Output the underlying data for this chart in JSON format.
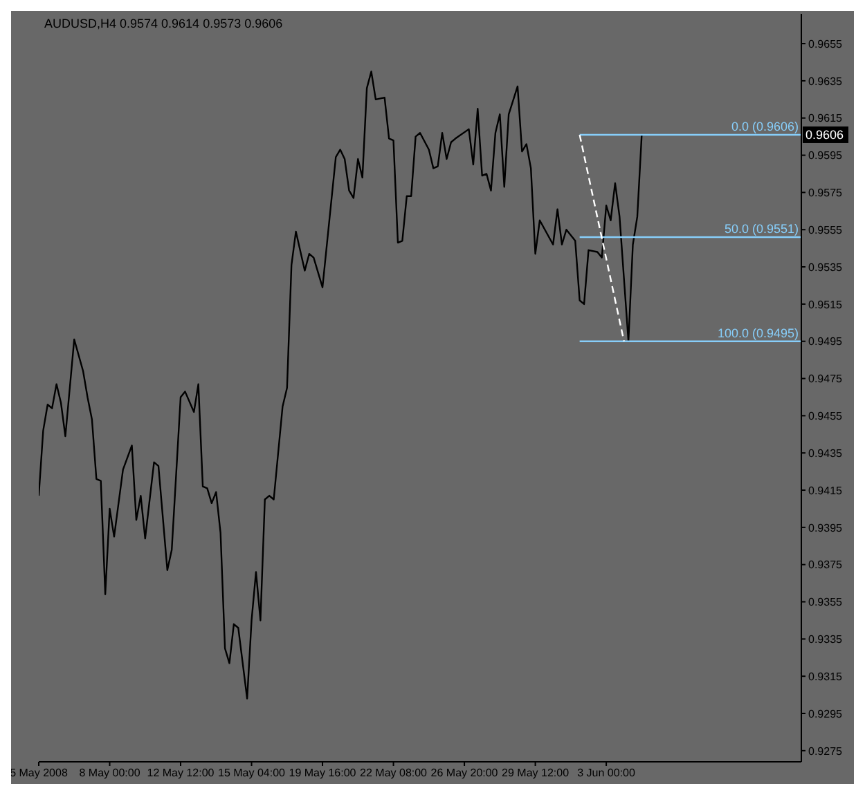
{
  "chart_data": {
    "type": "line",
    "title": "AUDUSD,H4  0.9574 0.9614 0.9573 0.9606",
    "categories": [
      "5 May 2008",
      null,
      null,
      null,
      null,
      null,
      null,
      null,
      null,
      null,
      null,
      null,
      null,
      null,
      null,
      null,
      "8 May 00:00",
      null,
      null,
      null,
      null,
      null,
      null,
      null,
      null,
      null,
      null,
      null,
      null,
      null,
      null,
      null,
      "12 May 12:00",
      null,
      null,
      null,
      null,
      null,
      null,
      null,
      null,
      null,
      null,
      null,
      null,
      null,
      null,
      null,
      "15 May 04:00",
      null,
      null,
      null,
      null,
      null,
      null,
      null,
      null,
      null,
      null,
      null,
      null,
      null,
      null,
      null,
      "19 May 16:00",
      null,
      null,
      null,
      null,
      null,
      null,
      null,
      null,
      null,
      null,
      null,
      null,
      null,
      null,
      null,
      "22 May 08:00",
      null,
      null,
      null,
      null,
      null,
      null,
      null,
      null,
      null,
      null,
      null,
      null,
      null,
      null,
      null,
      "26 May 20:00",
      null,
      null,
      null,
      null,
      null,
      null,
      null,
      null,
      null,
      null,
      null,
      null,
      null,
      null,
      null,
      "29 May 12:00",
      null,
      null,
      null,
      null,
      null,
      null,
      null,
      null,
      null,
      null,
      null,
      null,
      null,
      null,
      null,
      "3 Jun 00:00",
      null,
      null,
      null,
      null,
      null,
      null,
      null,
      null,
      null,
      null,
      null,
      null,
      null,
      null,
      null,
      null,
      null,
      null,
      null,
      null,
      null,
      null,
      null,
      null,
      null,
      null,
      null,
      null,
      null,
      null,
      null,
      null,
      null,
      null,
      null,
      null,
      null,
      null,
      null,
      null,
      null,
      null,
      null,
      null
    ],
    "ylim": [
      0.9269,
      0.9671
    ],
    "yticks": [
      0.9275,
      0.9295,
      0.9315,
      0.9335,
      0.9355,
      0.9375,
      0.9395,
      0.9415,
      0.9435,
      0.9455,
      0.9475,
      0.9495,
      0.9515,
      0.9535,
      0.9555,
      0.9575,
      0.9595,
      0.9615,
      0.9635,
      0.9655
    ],
    "grid": false,
    "legend": false,
    "series": [
      {
        "color": "#000000",
        "values": [
          0.9412,
          0.9447,
          0.9461,
          0.9459,
          0.9472,
          0.9462,
          0.9444,
          0.947,
          0.9496,
          null,
          0.9479,
          0.9465,
          0.9453,
          0.9421,
          0.942,
          0.9359,
          0.9405,
          0.939,
          null,
          0.9426,
          null,
          0.9439,
          0.9399,
          0.9412,
          0.9389,
          null,
          0.943,
          0.9428,
          null,
          0.9372,
          0.9383,
          null,
          0.9465,
          0.9468,
          null,
          0.9457,
          0.9472,
          0.9417,
          0.9416,
          0.9408,
          0.9414,
          0.9392,
          0.933,
          0.9322,
          0.9343,
          0.9341,
          null,
          0.9303,
          0.9345,
          0.9371,
          0.9345,
          0.941,
          0.9412,
          0.941,
          null,
          0.946,
          0.947,
          0.9536,
          0.9554,
          null,
          0.9533,
          0.9542,
          0.954,
          null,
          0.9524,
          null,
          null,
          0.9594,
          0.9598,
          0.9593,
          0.9576,
          0.9572,
          0.9593,
          0.9583,
          0.9631,
          0.964,
          0.9625,
          null,
          0.9626,
          0.9604,
          0.9603,
          0.9548,
          0.9549,
          0.9573,
          0.9573,
          0.9605,
          0.9607,
          null,
          0.9598,
          0.9588,
          0.9589,
          0.9607,
          0.9593,
          0.9602,
          0.9604,
          null,
          null,
          0.9609,
          0.959,
          0.962,
          0.9584,
          0.9585,
          0.9576,
          0.9607,
          0.9617,
          0.9578,
          0.9617,
          null,
          0.9632,
          0.9597,
          0.9601,
          0.9588,
          0.9542,
          0.956,
          null,
          null,
          0.9547,
          0.9566,
          0.9547,
          0.9555,
          null,
          0.9549,
          0.9517,
          0.9515,
          0.9544,
          null,
          0.9543,
          0.954,
          0.9568,
          0.956,
          0.958,
          0.9562,
          null,
          0.9495,
          0.9547,
          0.9562,
          0.9606,
          null,
          null,
          null,
          null,
          null,
          null,
          null,
          null,
          null,
          null,
          null,
          null,
          null,
          null,
          null,
          null,
          null,
          null,
          null,
          null,
          null,
          null,
          null,
          null,
          null,
          null,
          null,
          null,
          null,
          null,
          null,
          null,
          null,
          null,
          null,
          null
        ]
      },
      {
        "color": "#87cefa",
        "values": [
          null,
          null,
          null,
          null,
          null,
          null,
          null,
          null,
          null,
          null,
          null,
          null,
          null,
          null,
          null,
          null,
          null,
          null,
          null,
          null,
          null,
          null,
          null,
          null,
          null,
          null,
          null,
          null,
          null,
          null,
          null,
          null,
          null,
          null,
          null,
          null,
          null,
          null,
          null,
          null,
          null,
          null,
          null,
          null,
          null,
          null,
          null,
          null,
          null,
          null,
          null,
          null,
          null,
          null,
          null,
          null,
          null,
          null,
          null,
          null,
          null,
          null,
          null,
          null,
          null,
          null,
          null,
          null,
          null,
          null,
          null,
          null,
          null,
          null,
          null,
          null,
          null,
          null,
          null,
          null,
          null,
          null,
          null,
          null,
          null,
          null,
          null,
          null,
          null,
          null,
          null,
          null,
          null,
          null,
          null,
          null,
          null,
          null,
          null,
          null,
          null,
          null,
          null,
          null,
          null,
          null,
          null,
          null,
          null,
          null,
          null,
          null,
          null,
          null,
          null,
          null,
          null,
          null,
          null,
          null,
          null,
          null,
          0.9606,
          0.9606,
          0.9606,
          0.9606,
          0.9606,
          0.9606,
          0.9606,
          0.9606,
          0.9606,
          0.9606,
          0.9606,
          0.9606,
          0.9606,
          0.9606,
          0.9606,
          0.9606,
          0.9606,
          0.9606,
          0.9606,
          0.9606,
          0.9606,
          0.9606,
          0.9606,
          0.9606,
          0.9606,
          0.9606,
          0.9606,
          0.9606,
          0.9606,
          0.9606,
          0.9606,
          0.9606,
          0.9606,
          0.9606,
          0.9606,
          0.9606,
          0.9606,
          0.9606,
          0.9606,
          0.9606,
          0.9606,
          0.9606,
          0.9606,
          0.9606,
          0.9606,
          0.9606,
          0.9606,
          0.9606,
          0.9606,
          0.9606,
          0.9606
        ]
      },
      {
        "color": "#87cefa",
        "values": [
          null,
          null,
          null,
          null,
          null,
          null,
          null,
          null,
          null,
          null,
          null,
          null,
          null,
          null,
          null,
          null,
          null,
          null,
          null,
          null,
          null,
          null,
          null,
          null,
          null,
          null,
          null,
          null,
          null,
          null,
          null,
          null,
          null,
          null,
          null,
          null,
          null,
          null,
          null,
          null,
          null,
          null,
          null,
          null,
          null,
          null,
          null,
          null,
          null,
          null,
          null,
          null,
          null,
          null,
          null,
          null,
          null,
          null,
          null,
          null,
          null,
          null,
          null,
          null,
          null,
          null,
          null,
          null,
          null,
          null,
          null,
          null,
          null,
          null,
          null,
          null,
          null,
          null,
          null,
          null,
          null,
          null,
          null,
          null,
          null,
          null,
          null,
          null,
          null,
          null,
          null,
          null,
          null,
          null,
          null,
          null,
          null,
          null,
          null,
          null,
          null,
          null,
          null,
          null,
          null,
          null,
          null,
          null,
          null,
          null,
          null,
          null,
          null,
          null,
          null,
          null,
          null,
          null,
          null,
          null,
          null,
          null,
          0.9551,
          0.9551,
          0.9551,
          0.9551,
          0.9551,
          0.9551,
          0.9551,
          0.9551,
          0.9551,
          0.9551,
          0.9551,
          0.9551,
          0.9551,
          0.9551,
          0.9551,
          0.9551,
          0.9551,
          0.9551,
          0.9551,
          0.9551,
          0.9551,
          0.9551,
          0.9551,
          0.9551,
          0.9551,
          0.9551,
          0.9551,
          0.9551,
          0.9551,
          0.9551,
          0.9551,
          0.9551,
          0.9551,
          0.9551,
          0.9551,
          0.9551,
          0.9551,
          0.9551,
          0.9551,
          0.9551,
          0.9551,
          0.9551,
          0.9551,
          0.9551,
          0.9551,
          0.9551,
          0.9551,
          0.9551,
          0.9551,
          0.9551,
          0.9551
        ]
      },
      {
        "color": "#87cefa",
        "values": [
          null,
          null,
          null,
          null,
          null,
          null,
          null,
          null,
          null,
          null,
          null,
          null,
          null,
          null,
          null,
          null,
          null,
          null,
          null,
          null,
          null,
          null,
          null,
          null,
          null,
          null,
          null,
          null,
          null,
          null,
          null,
          null,
          null,
          null,
          null,
          null,
          null,
          null,
          null,
          null,
          null,
          null,
          null,
          null,
          null,
          null,
          null,
          null,
          null,
          null,
          null,
          null,
          null,
          null,
          null,
          null,
          null,
          null,
          null,
          null,
          null,
          null,
          null,
          null,
          null,
          null,
          null,
          null,
          null,
          null,
          null,
          null,
          null,
          null,
          null,
          null,
          null,
          null,
          null,
          null,
          null,
          null,
          null,
          null,
          null,
          null,
          null,
          null,
          null,
          null,
          null,
          null,
          null,
          null,
          null,
          null,
          null,
          null,
          null,
          null,
          null,
          null,
          null,
          null,
          null,
          null,
          null,
          null,
          null,
          null,
          null,
          null,
          null,
          null,
          null,
          null,
          null,
          null,
          null,
          null,
          null,
          null,
          0.9495,
          0.9495,
          0.9495,
          0.9495,
          0.9495,
          0.9495,
          0.9495,
          0.9495,
          0.9495,
          0.9495,
          0.9495,
          0.9495,
          0.9495,
          0.9495,
          0.9495,
          0.9495,
          0.9495,
          0.9495,
          0.9495,
          0.9495,
          0.9495,
          0.9495,
          0.9495,
          0.9495,
          0.9495,
          0.9495,
          0.9495,
          0.9495,
          0.9495,
          0.9495,
          0.9495,
          0.9495,
          0.9495,
          0.9495,
          0.9495,
          0.9495,
          0.9495,
          0.9495,
          0.9495,
          0.9495,
          0.9495,
          0.9495,
          0.9495,
          0.9495,
          0.9495,
          0.9495,
          0.9495,
          0.9495,
          0.9495,
          0.9495,
          0.9495
        ]
      },
      {
        "color": "#ffffff",
        "line_style": "dashed",
        "values": [
          null,
          null,
          null,
          null,
          null,
          null,
          null,
          null,
          null,
          null,
          null,
          null,
          null,
          null,
          null,
          null,
          null,
          null,
          null,
          null,
          null,
          null,
          null,
          null,
          null,
          null,
          null,
          null,
          null,
          null,
          null,
          null,
          null,
          null,
          null,
          null,
          null,
          null,
          null,
          null,
          null,
          null,
          null,
          null,
          null,
          null,
          null,
          null,
          null,
          null,
          null,
          null,
          null,
          null,
          null,
          null,
          null,
          null,
          null,
          null,
          null,
          null,
          null,
          null,
          null,
          null,
          null,
          null,
          null,
          null,
          null,
          null,
          null,
          null,
          null,
          null,
          null,
          null,
          null,
          null,
          null,
          null,
          null,
          null,
          null,
          null,
          null,
          null,
          null,
          null,
          null,
          null,
          null,
          null,
          null,
          null,
          null,
          null,
          null,
          null,
          null,
          null,
          null,
          null,
          null,
          null,
          null,
          null,
          null,
          null,
          null,
          null,
          null,
          null,
          null,
          null,
          null,
          null,
          null,
          null,
          null,
          null,
          0.9606,
          null,
          null,
          null,
          null,
          null,
          null,
          null,
          null,
          null,
          0.9495,
          null,
          null,
          null,
          null,
          null,
          null,
          null,
          null,
          null,
          null,
          null,
          null,
          null,
          null,
          null,
          null,
          null,
          null,
          null,
          null,
          null,
          null,
          null,
          null,
          null,
          null,
          null,
          null,
          null,
          null,
          null,
          null,
          null,
          null,
          null,
          null,
          null,
          null,
          null,
          null
        ]
      }
    ],
    "annotations": [
      {
        "text": "0.0  (0.9606)",
        "y": 0.9606
      },
      {
        "text": "50.0  (0.9551)",
        "y": 0.9551
      },
      {
        "text": "100.0  (0.9495)",
        "y": 0.9495
      },
      "0.9606"
    ]
  }
}
